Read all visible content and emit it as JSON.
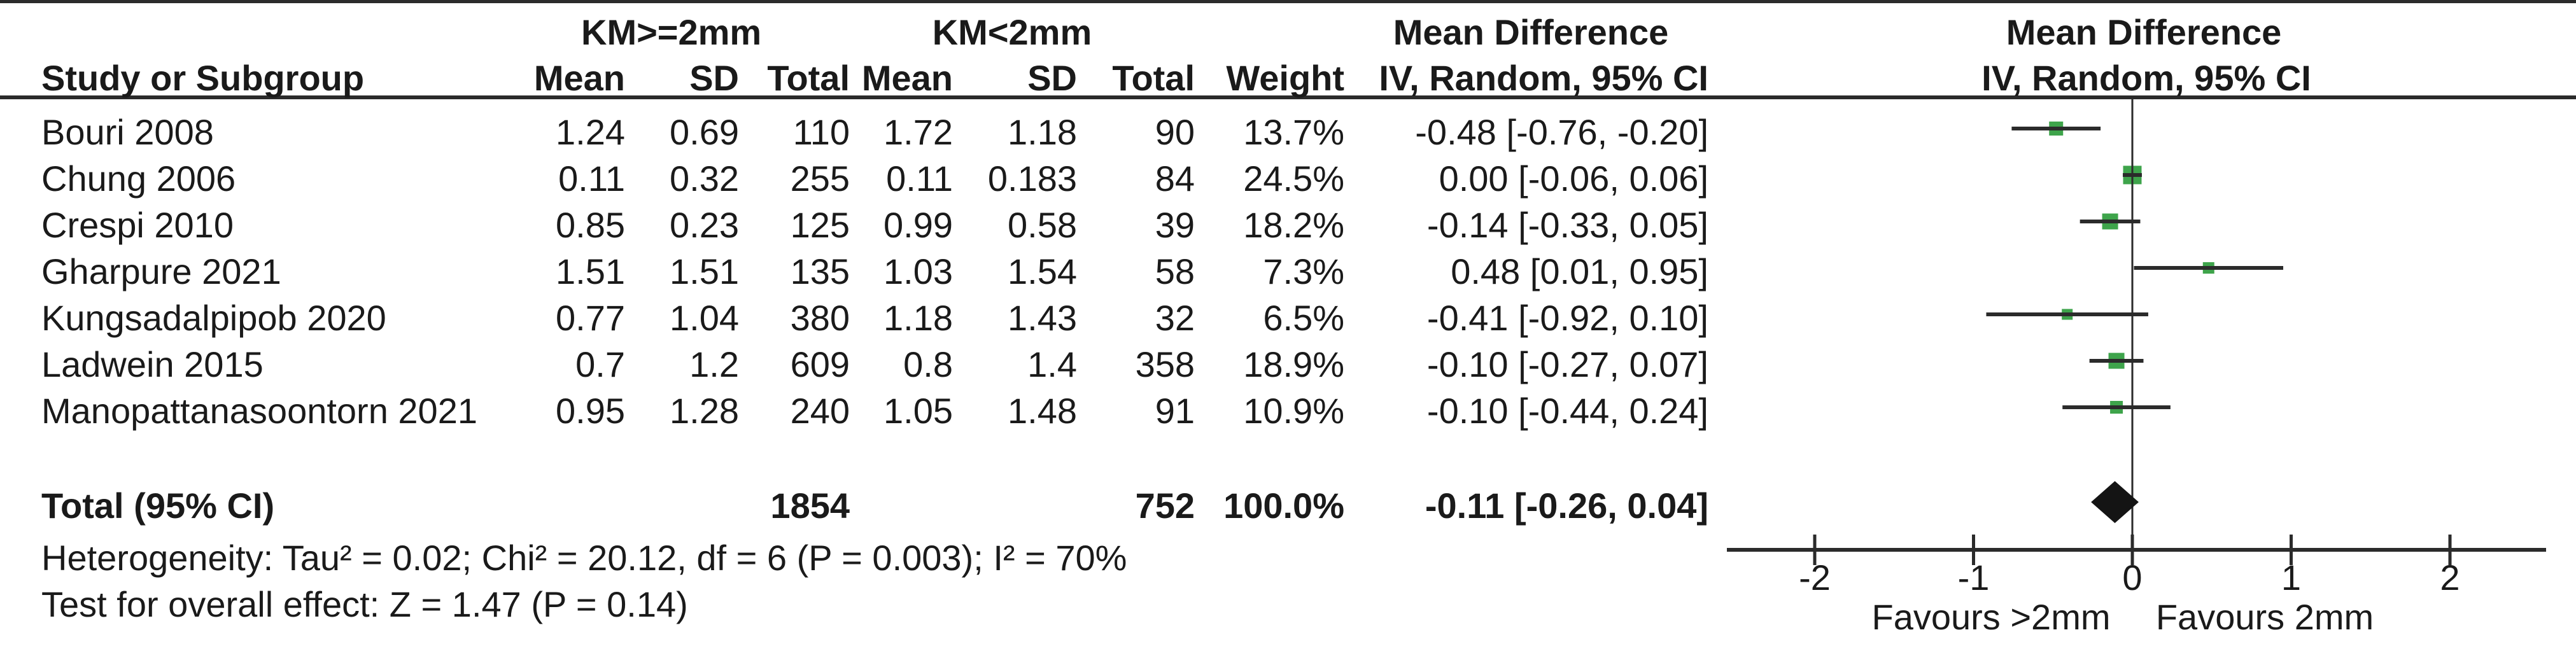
{
  "title_headers": {
    "group1": "KM>=2mm",
    "group2": "KM<2mm",
    "md_text_col": "Mean Difference",
    "md_plot_col": "Mean Difference"
  },
  "column_headers": {
    "study": "Study or Subgroup",
    "mean1": "Mean",
    "sd1": "SD",
    "total1": "Total",
    "mean2": "Mean",
    "sd2": "SD",
    "total2": "Total",
    "weight": "Weight",
    "ci_text": "IV, Random, 95% CI",
    "ci_plot": "IV, Random, 95% CI"
  },
  "chart_data": {
    "type": "forest",
    "effect_measure": "Mean Difference",
    "model": "IV, Random, 95% CI",
    "x_ticks": [
      "-2",
      "-1",
      "0",
      "1",
      "2"
    ],
    "x_tick_values": [
      -2,
      -1,
      0,
      1,
      2
    ],
    "xlim": [
      -2.55,
      2.6
    ],
    "axis_labels": {
      "left": "Favours >2mm",
      "right": "Favours 2mm"
    },
    "marker_color": "#3ea44b",
    "line_color": "#2b2b2b",
    "diamond_color": "#141414",
    "studies": [
      {
        "name": "Bouri 2008",
        "mean1": "1.24",
        "sd1": "0.69",
        "total1": "110",
        "mean2": "1.72",
        "sd2": "1.18",
        "total2": "90",
        "weight": "13.7%",
        "ci": "-0.48 [-0.76, -0.20]",
        "md": -0.48,
        "lo": -0.76,
        "hi": -0.2,
        "weight_pct": 13.7
      },
      {
        "name": "Chung 2006",
        "mean1": "0.11",
        "sd1": "0.32",
        "total1": "255",
        "mean2": "0.11",
        "sd2": "0.183",
        "total2": "84",
        "weight": "24.5%",
        "ci": "0.00 [-0.06, 0.06]",
        "md": 0.0,
        "lo": -0.06,
        "hi": 0.06,
        "weight_pct": 24.5
      },
      {
        "name": "Crespi 2010",
        "mean1": "0.85",
        "sd1": "0.23",
        "total1": "125",
        "mean2": "0.99",
        "sd2": "0.58",
        "total2": "39",
        "weight": "18.2%",
        "ci": "-0.14 [-0.33, 0.05]",
        "md": -0.14,
        "lo": -0.33,
        "hi": 0.05,
        "weight_pct": 18.2
      },
      {
        "name": "Gharpure 2021",
        "mean1": "1.51",
        "sd1": "1.51",
        "total1": "135",
        "mean2": "1.03",
        "sd2": "1.54",
        "total2": "58",
        "weight": "7.3%",
        "ci": "0.48 [0.01, 0.95]",
        "md": 0.48,
        "lo": 0.01,
        "hi": 0.95,
        "weight_pct": 7.3
      },
      {
        "name": "Kungsadalpipob 2020",
        "mean1": "0.77",
        "sd1": "1.04",
        "total1": "380",
        "mean2": "1.18",
        "sd2": "1.43",
        "total2": "32",
        "weight": "6.5%",
        "ci": "-0.41 [-0.92, 0.10]",
        "md": -0.41,
        "lo": -0.92,
        "hi": 0.1,
        "weight_pct": 6.5
      },
      {
        "name": "Ladwein 2015",
        "mean1": "0.7",
        "sd1": "1.2",
        "total1": "609",
        "mean2": "0.8",
        "sd2": "1.4",
        "total2": "358",
        "weight": "18.9%",
        "ci": "-0.10 [-0.27, 0.07]",
        "md": -0.1,
        "lo": -0.27,
        "hi": 0.07,
        "weight_pct": 18.9
      },
      {
        "name": "Manopattanasoontorn 2021",
        "mean1": "0.95",
        "sd1": "1.28",
        "total1": "240",
        "mean2": "1.05",
        "sd2": "1.48",
        "total2": "91",
        "weight": "10.9%",
        "ci": "-0.10 [-0.44, 0.24]",
        "md": -0.1,
        "lo": -0.44,
        "hi": 0.24,
        "weight_pct": 10.9
      }
    ],
    "total": {
      "label": "Total (95% CI)",
      "total1": "1854",
      "total2": "752",
      "weight": "100.0%",
      "ci": "-0.11 [-0.26, 0.04]",
      "md": -0.11,
      "lo": -0.26,
      "hi": 0.04
    }
  },
  "footnotes": {
    "heterogeneity": "Heterogeneity: Tau² = 0.02; Chi² = 20.12, df = 6 (P = 0.003); I² = 70%",
    "overall_effect": "Test for overall effect: Z = 1.47 (P = 0.14)"
  }
}
